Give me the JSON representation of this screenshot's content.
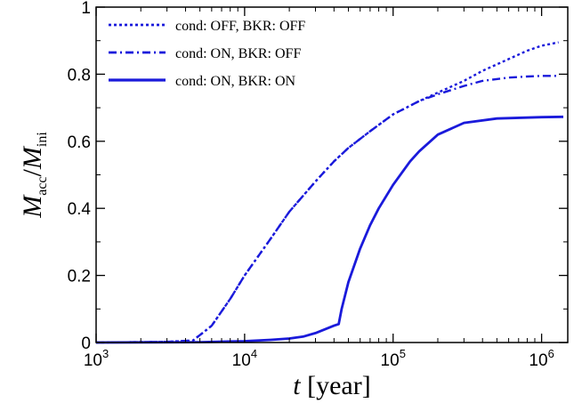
{
  "chart_data": {
    "type": "line",
    "x_scale": "log",
    "y_scale": "linear",
    "xlim": [
      1000,
      1500000
    ],
    "ylim": [
      0,
      1
    ],
    "grid": false,
    "legend_position": "top-left",
    "xlabel": {
      "symbol": "t",
      "text": " [year]"
    },
    "ylabel": {
      "main1": "M",
      "sub1": "acc",
      "slash": "/",
      "main2": "M",
      "sub2": "ini"
    },
    "x_ticks": [
      {
        "value": 1000,
        "base": "10",
        "exp": "3"
      },
      {
        "value": 10000,
        "base": "10",
        "exp": "4"
      },
      {
        "value": 100000,
        "base": "10",
        "exp": "5"
      },
      {
        "value": 1000000,
        "base": "10",
        "exp": "6"
      }
    ],
    "y_ticks": [
      {
        "value": 0,
        "label": "0"
      },
      {
        "value": 0.2,
        "label": "0.2"
      },
      {
        "value": 0.4,
        "label": "0.4"
      },
      {
        "value": 0.6,
        "label": "0.6"
      },
      {
        "value": 0.8,
        "label": "0.8"
      },
      {
        "value": 1,
        "label": "1"
      }
    ],
    "series": [
      {
        "name": "cond: OFF, BKR: OFF",
        "style": "dotted",
        "color": "#1a1adb",
        "x": [
          1000,
          3000,
          4500,
          6000,
          8000,
          10000,
          15000,
          20000,
          30000,
          40000,
          50000,
          70000,
          100000,
          150000,
          200000,
          300000,
          400000,
          600000,
          800000,
          1000000,
          1300000
        ],
        "y": [
          0,
          0.002,
          0.006,
          0.05,
          0.13,
          0.2,
          0.31,
          0.39,
          0.48,
          0.54,
          0.58,
          0.63,
          0.68,
          0.72,
          0.745,
          0.78,
          0.81,
          0.845,
          0.87,
          0.885,
          0.895
        ]
      },
      {
        "name": "cond: ON, BKR: OFF",
        "style": "dashdot",
        "color": "#1a1adb",
        "x": [
          1000,
          3000,
          4500,
          6000,
          8000,
          10000,
          15000,
          20000,
          30000,
          40000,
          50000,
          70000,
          100000,
          150000,
          200000,
          300000,
          400000,
          600000,
          800000,
          1000000,
          1300000
        ],
        "y": [
          0,
          0.002,
          0.006,
          0.05,
          0.13,
          0.2,
          0.31,
          0.39,
          0.48,
          0.54,
          0.58,
          0.63,
          0.68,
          0.72,
          0.74,
          0.765,
          0.78,
          0.79,
          0.793,
          0.795,
          0.795
        ]
      },
      {
        "name": "cond: ON, BKR: ON",
        "style": "solid",
        "color": "#1a1adb",
        "x": [
          1000,
          5000,
          10000,
          15000,
          20000,
          25000,
          30000,
          35000,
          40000,
          43000,
          45000,
          50000,
          60000,
          70000,
          80000,
          100000,
          130000,
          150000,
          200000,
          300000,
          500000,
          1000000,
          1400000
        ],
        "y": [
          0,
          0.001,
          0.004,
          0.008,
          0.012,
          0.018,
          0.028,
          0.04,
          0.05,
          0.055,
          0.1,
          0.18,
          0.28,
          0.35,
          0.4,
          0.47,
          0.54,
          0.57,
          0.62,
          0.655,
          0.668,
          0.672,
          0.673
        ]
      }
    ]
  }
}
